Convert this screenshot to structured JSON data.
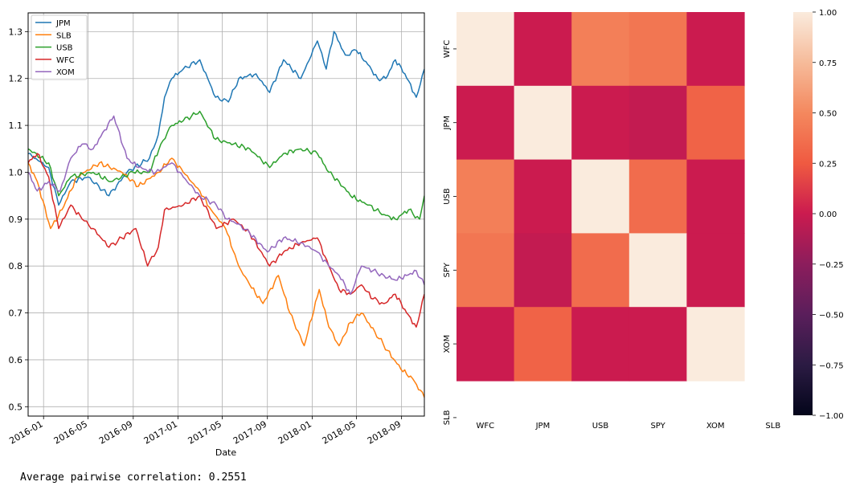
{
  "output_text": "Average pairwise correlation: 0.2551",
  "chart_data": [
    {
      "type": "line",
      "xlabel": "Date",
      "ylabel": "",
      "xlim": [
        "2015-11-20",
        "2018-11-02"
      ],
      "ylim": [
        0.48,
        1.34
      ],
      "grid": true,
      "legend_position": "top-left",
      "x_ticks": [
        "2016-01",
        "2016-05",
        "2016-09",
        "2017-01",
        "2017-05",
        "2017-09",
        "2018-01",
        "2018-05",
        "2018-09"
      ],
      "y_ticks": [
        "0.5",
        "0.6",
        "0.7",
        "0.8",
        "0.9",
        "1.0",
        "1.1",
        "1.2",
        "1.3"
      ],
      "series": [
        {
          "name": "JPM",
          "color": "#1f77b4",
          "points": [
            [
              "2015-11-20",
              1.04
            ],
            [
              "2016-01-15",
              1.01
            ],
            [
              "2016-02-11",
              0.93
            ],
            [
              "2016-03-15",
              0.98
            ],
            [
              "2016-05-01",
              0.99
            ],
            [
              "2016-06-27",
              0.95
            ],
            [
              "2016-08-15",
              1.0
            ],
            [
              "2016-10-15",
              1.03
            ],
            [
              "2016-11-08",
              1.08
            ],
            [
              "2016-11-25",
              1.16
            ],
            [
              "2016-12-15",
              1.2
            ],
            [
              "2017-01-15",
              1.22
            ],
            [
              "2017-03-01",
              1.24
            ],
            [
              "2017-04-13",
              1.16
            ],
            [
              "2017-05-18",
              1.15
            ],
            [
              "2017-06-15",
              1.2
            ],
            [
              "2017-08-01",
              1.21
            ],
            [
              "2017-09-07",
              1.17
            ],
            [
              "2017-10-15",
              1.24
            ],
            [
              "2017-12-01",
              1.2
            ],
            [
              "2018-01-15",
              1.28
            ],
            [
              "2018-02-08",
              1.22
            ],
            [
              "2018-03-01",
              1.3
            ],
            [
              "2018-04-01",
              1.25
            ],
            [
              "2018-05-01",
              1.26
            ],
            [
              "2018-06-01",
              1.23
            ],
            [
              "2018-06-28",
              1.2
            ],
            [
              "2018-07-20",
              1.2
            ],
            [
              "2018-08-15",
              1.24
            ],
            [
              "2018-09-10",
              1.21
            ],
            [
              "2018-10-11",
              1.16
            ],
            [
              "2018-11-02",
              1.22
            ]
          ]
        },
        {
          "name": "SLB",
          "color": "#ff7f0e",
          "points": [
            [
              "2015-11-20",
              1.02
            ],
            [
              "2015-12-15",
              0.98
            ],
            [
              "2016-01-20",
              0.88
            ],
            [
              "2016-02-20",
              0.92
            ],
            [
              "2016-04-01",
              0.99
            ],
            [
              "2016-06-01",
              1.02
            ],
            [
              "2016-08-01",
              1.0
            ],
            [
              "2016-09-15",
              0.97
            ],
            [
              "2016-11-08",
              1.0
            ],
            [
              "2016-12-15",
              1.03
            ],
            [
              "2017-01-15",
              1.0
            ],
            [
              "2017-03-01",
              0.96
            ],
            [
              "2017-04-01",
              0.92
            ],
            [
              "2017-05-10",
              0.88
            ],
            [
              "2017-06-15",
              0.8
            ],
            [
              "2017-07-15",
              0.76
            ],
            [
              "2017-08-20",
              0.72
            ],
            [
              "2017-10-01",
              0.78
            ],
            [
              "2017-11-01",
              0.7
            ],
            [
              "2017-12-10",
              0.63
            ],
            [
              "2018-01-20",
              0.75
            ],
            [
              "2018-02-15",
              0.67
            ],
            [
              "2018-03-15",
              0.63
            ],
            [
              "2018-04-15",
              0.68
            ],
            [
              "2018-05-15",
              0.7
            ],
            [
              "2018-06-20",
              0.66
            ],
            [
              "2018-07-25",
              0.62
            ],
            [
              "2018-08-30",
              0.58
            ],
            [
              "2018-10-01",
              0.56
            ],
            [
              "2018-11-02",
              0.52
            ]
          ]
        },
        {
          "name": "USB",
          "color": "#2ca02c",
          "points": [
            [
              "2015-11-20",
              1.05
            ],
            [
              "2016-01-15",
              1.02
            ],
            [
              "2016-02-11",
              0.95
            ],
            [
              "2016-03-15",
              0.99
            ],
            [
              "2016-05-15",
              1.0
            ],
            [
              "2016-07-01",
              0.98
            ],
            [
              "2016-09-01",
              1.0
            ],
            [
              "2016-10-15",
              1.0
            ],
            [
              "2016-11-15",
              1.06
            ],
            [
              "2016-12-15",
              1.1
            ],
            [
              "2017-01-15",
              1.11
            ],
            [
              "2017-03-01",
              1.13
            ],
            [
              "2017-04-13",
              1.07
            ],
            [
              "2017-06-01",
              1.06
            ],
            [
              "2017-07-15",
              1.05
            ],
            [
              "2017-09-07",
              1.01
            ],
            [
              "2017-10-15",
              1.04
            ],
            [
              "2017-12-01",
              1.05
            ],
            [
              "2018-01-15",
              1.04
            ],
            [
              "2018-02-15",
              1.0
            ],
            [
              "2018-03-15",
              0.98
            ],
            [
              "2018-04-15",
              0.95
            ],
            [
              "2018-06-01",
              0.93
            ],
            [
              "2018-07-15",
              0.91
            ],
            [
              "2018-08-15",
              0.9
            ],
            [
              "2018-09-20",
              0.92
            ],
            [
              "2018-10-20",
              0.9
            ],
            [
              "2018-11-02",
              0.95
            ]
          ]
        },
        {
          "name": "WFC",
          "color": "#d62728",
          "points": [
            [
              "2015-11-20",
              1.02
            ],
            [
              "2015-12-15",
              1.04
            ],
            [
              "2016-01-15",
              0.99
            ],
            [
              "2016-02-11",
              0.88
            ],
            [
              "2016-03-15",
              0.93
            ],
            [
              "2016-04-15",
              0.9
            ],
            [
              "2016-05-15",
              0.88
            ],
            [
              "2016-06-27",
              0.84
            ],
            [
              "2016-08-01",
              0.86
            ],
            [
              "2016-09-08",
              0.88
            ],
            [
              "2016-10-10",
              0.8
            ],
            [
              "2016-11-08",
              0.84
            ],
            [
              "2016-11-25",
              0.92
            ],
            [
              "2017-01-15",
              0.93
            ],
            [
              "2017-03-01",
              0.95
            ],
            [
              "2017-04-15",
              0.88
            ],
            [
              "2017-06-01",
              0.9
            ],
            [
              "2017-07-15",
              0.87
            ],
            [
              "2017-09-07",
              0.8
            ],
            [
              "2017-10-15",
              0.83
            ],
            [
              "2017-12-01",
              0.85
            ],
            [
              "2018-01-15",
              0.86
            ],
            [
              "2018-02-15",
              0.8
            ],
            [
              "2018-03-15",
              0.75
            ],
            [
              "2018-04-15",
              0.74
            ],
            [
              "2018-05-15",
              0.76
            ],
            [
              "2018-06-15",
              0.73
            ],
            [
              "2018-07-15",
              0.72
            ],
            [
              "2018-08-15",
              0.74
            ],
            [
              "2018-09-15",
              0.7
            ],
            [
              "2018-10-11",
              0.67
            ],
            [
              "2018-11-02",
              0.74
            ]
          ]
        },
        {
          "name": "XOM",
          "color": "#9467bd",
          "points": [
            [
              "2015-11-20",
              1.0
            ],
            [
              "2015-12-15",
              0.96
            ],
            [
              "2016-01-15",
              0.98
            ],
            [
              "2016-02-15",
              0.96
            ],
            [
              "2016-03-15",
              1.03
            ],
            [
              "2016-04-15",
              1.06
            ],
            [
              "2016-05-15",
              1.05
            ],
            [
              "2016-06-15",
              1.09
            ],
            [
              "2016-07-10",
              1.12
            ],
            [
              "2016-08-15",
              1.03
            ],
            [
              "2016-09-15",
              1.01
            ],
            [
              "2016-11-01",
              1.0
            ],
            [
              "2016-12-15",
              1.02
            ],
            [
              "2017-01-15",
              0.99
            ],
            [
              "2017-03-01",
              0.95
            ],
            [
              "2017-04-15",
              0.93
            ],
            [
              "2017-05-15",
              0.9
            ],
            [
              "2017-06-15",
              0.89
            ],
            [
              "2017-07-15",
              0.87
            ],
            [
              "2017-09-01",
              0.83
            ],
            [
              "2017-10-15",
              0.86
            ],
            [
              "2017-12-01",
              0.85
            ],
            [
              "2018-01-15",
              0.83
            ],
            [
              "2018-02-15",
              0.8
            ],
            [
              "2018-03-15",
              0.78
            ],
            [
              "2018-04-15",
              0.74
            ],
            [
              "2018-05-15",
              0.8
            ],
            [
              "2018-06-15",
              0.79
            ],
            [
              "2018-07-15",
              0.78
            ],
            [
              "2018-08-15",
              0.77
            ],
            [
              "2018-09-15",
              0.78
            ],
            [
              "2018-10-11",
              0.79
            ],
            [
              "2018-11-02",
              0.76
            ]
          ]
        }
      ]
    },
    {
      "type": "heatmap",
      "rows": [
        "WFC",
        "JPM",
        "USB",
        "SPY",
        "XOM",
        "SLB"
      ],
      "columns": [
        "WFC",
        "JPM",
        "USB",
        "SPY",
        "XOM",
        "SLB"
      ],
      "values": [
        [
          1.0,
          0.0,
          0.45,
          0.4,
          0.0,
          null
        ],
        [
          0.0,
          1.0,
          0.0,
          -0.03,
          0.3,
          null
        ],
        [
          0.45,
          0.0,
          1.0,
          0.35,
          0.0,
          null
        ],
        [
          0.4,
          -0.03,
          0.35,
          1.0,
          0.0,
          null
        ],
        [
          0.0,
          0.3,
          0.0,
          0.0,
          1.0,
          null
        ],
        [
          null,
          null,
          null,
          null,
          null,
          null
        ]
      ],
      "vmin": -1.0,
      "vmax": 1.0,
      "colorbar_ticks": [
        "1.00",
        "0.75",
        "0.50",
        "0.25",
        "0.00",
        "−0.25",
        "−0.50",
        "−0.75",
        "−1.00"
      ],
      "colorbar_tick_values": [
        1.0,
        0.75,
        0.5,
        0.25,
        0.0,
        -0.25,
        -0.5,
        -0.75,
        -1.0
      ],
      "colormap": "rocket"
    }
  ]
}
